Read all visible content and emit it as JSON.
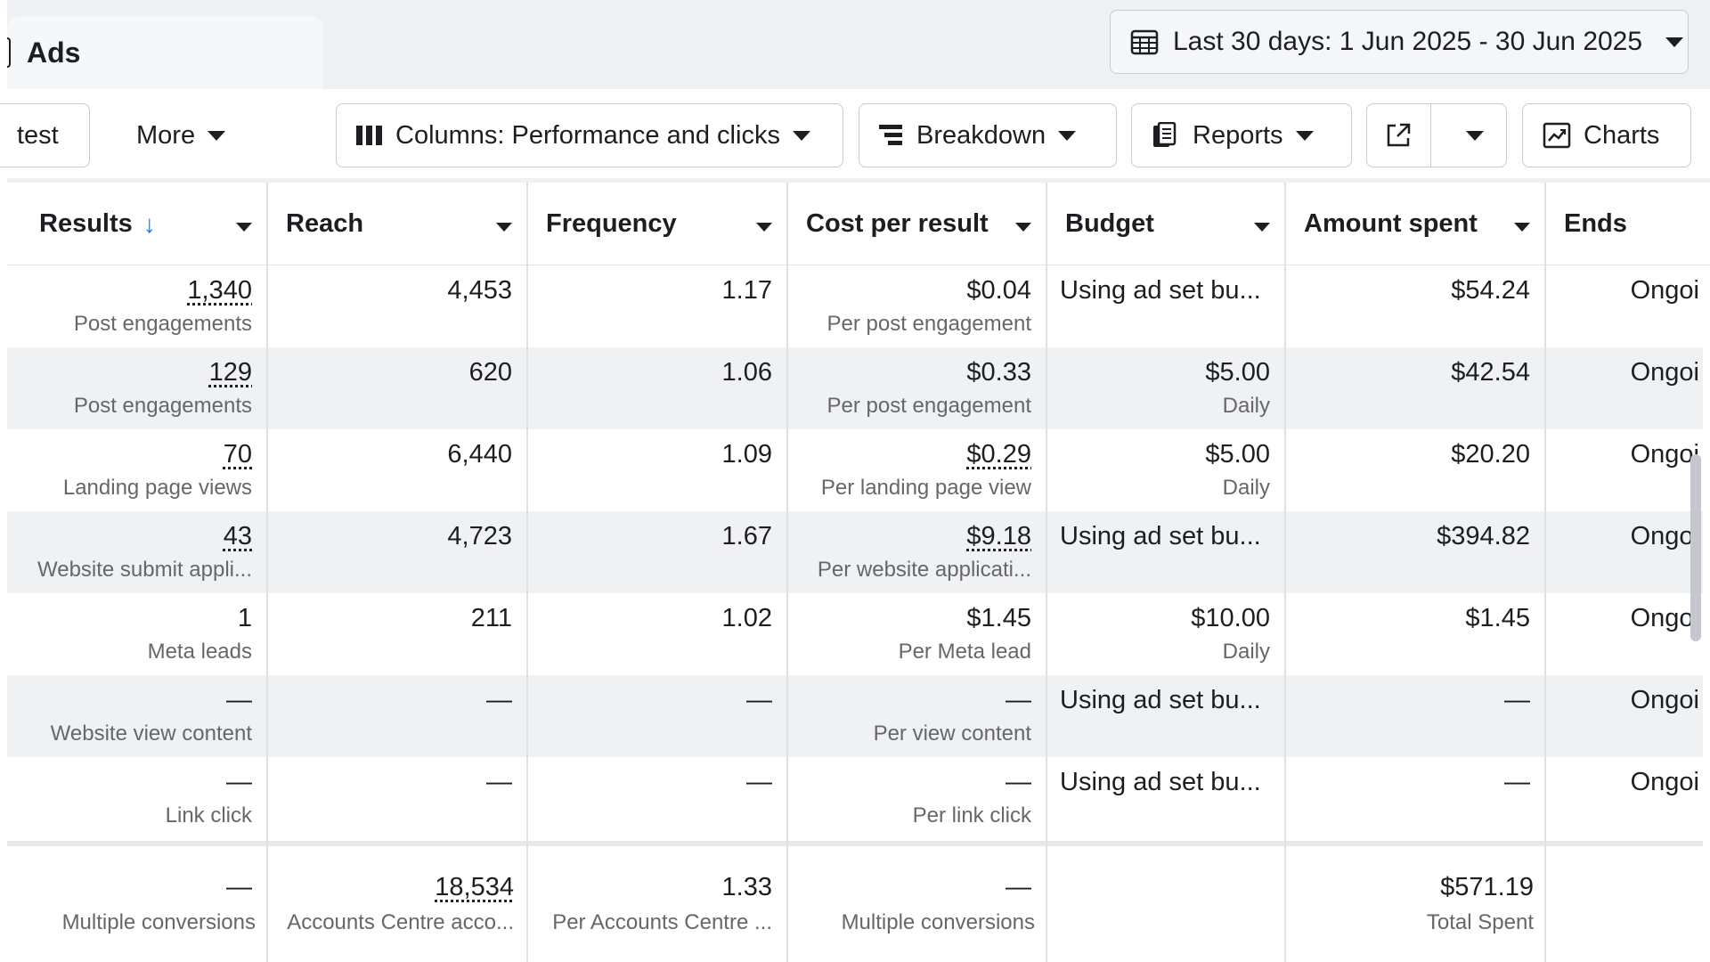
{
  "tab": {
    "title": "Ads"
  },
  "date_range": {
    "label": "Last 30 days: 1 Jun 2025 - 30 Jun 2025"
  },
  "toolbar": {
    "test_label": "test",
    "more_label": "More",
    "columns_label": "Columns: Performance and clicks",
    "breakdown_label": "Breakdown",
    "reports_label": "Reports",
    "charts_label": "Charts"
  },
  "columns": [
    "Results",
    "Reach",
    "Frequency",
    "Cost per result",
    "Budget",
    "Amount spent",
    "Ends"
  ],
  "rows": [
    {
      "results": "1,340",
      "results_sub": "Post engagements",
      "reach": "4,453",
      "frequency": "1.17",
      "cpr": "$0.04",
      "cpr_sub": "Per post engagement",
      "budget": "Using ad set bu...",
      "budget_sub": "",
      "spent": "$54.24",
      "ends": "Ongoi"
    },
    {
      "results": "129",
      "results_sub": "Post engagements",
      "reach": "620",
      "frequency": "1.06",
      "cpr": "$0.33",
      "cpr_sub": "Per post engagement",
      "budget": "$5.00",
      "budget_sub": "Daily",
      "spent": "$42.54",
      "ends": "Ongoi"
    },
    {
      "results": "70",
      "results_sub": "Landing page views",
      "reach": "6,440",
      "frequency": "1.09",
      "cpr": "$0.29",
      "cpr_sub": "Per landing page view",
      "budget": "$5.00",
      "budget_sub": "Daily",
      "spent": "$20.20",
      "ends": "Ongoi"
    },
    {
      "results": "43",
      "results_sub": "Website submit appli...",
      "reach": "4,723",
      "frequency": "1.67",
      "cpr": "$9.18",
      "cpr_sub": "Per website applicati...",
      "budget": "Using ad set bu...",
      "budget_sub": "",
      "spent": "$394.82",
      "ends": "Ongoi"
    },
    {
      "results": "1",
      "results_sub": "Meta leads",
      "reach": "211",
      "frequency": "1.02",
      "cpr": "$1.45",
      "cpr_sub": "Per Meta lead",
      "budget": "$10.00",
      "budget_sub": "Daily",
      "spent": "$1.45",
      "ends": "Ongoi"
    },
    {
      "results": "—",
      "results_sub": "Website view content",
      "reach": "—",
      "frequency": "—",
      "cpr": "—",
      "cpr_sub": "Per view content",
      "budget": "Using ad set bu...",
      "budget_sub": "",
      "spent": "—",
      "ends": "Ongoi"
    },
    {
      "results": "—",
      "results_sub": "Link click",
      "reach": "—",
      "frequency": "—",
      "cpr": "—",
      "cpr_sub": "Per link click",
      "budget": "Using ad set bu...",
      "budget_sub": "",
      "spent": "—",
      "ends": "Ongoi"
    }
  ],
  "totals": {
    "results": "—",
    "results_sub": "Multiple conversions",
    "reach": "18,534",
    "reach_sub": "Accounts Centre acco...",
    "frequency": "1.33",
    "frequency_sub": "Per Accounts Centre ...",
    "cpr": "—",
    "cpr_sub": "Multiple conversions",
    "spent": "$571.19",
    "spent_sub": "Total Spent"
  },
  "colors": {
    "accent": "#1877f2",
    "alt_row": "#f0f1f3",
    "border": "#c8cbd0"
  }
}
